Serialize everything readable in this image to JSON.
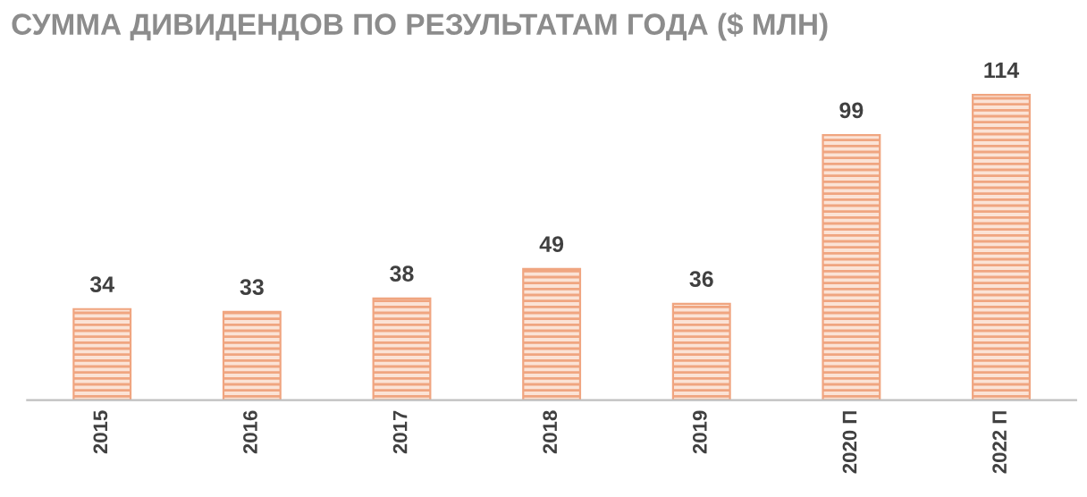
{
  "chart_data": {
    "type": "bar",
    "title": "СУММА ДИВИДЕНДОВ ПО РЕЗУЛЬТАТАМ ГОДА ($ МЛН)",
    "categories": [
      "2015",
      "2016",
      "2017",
      "2018",
      "2019",
      "2020 П",
      "2022 П"
    ],
    "values": [
      34,
      33,
      38,
      49,
      36,
      99,
      114
    ],
    "color": "#f0a580",
    "data_labels": true,
    "grid": false,
    "legend": false
  }
}
